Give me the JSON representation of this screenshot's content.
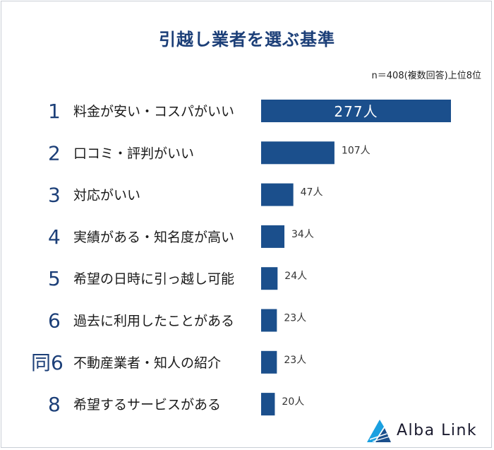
{
  "chart_data": {
    "type": "bar",
    "orientation": "horizontal",
    "title": "引越し業者を選ぶ基準",
    "note": "n＝408(複数回答)上位8位",
    "unit": "人",
    "ranks": [
      "1",
      "2",
      "3",
      "4",
      "5",
      "6",
      "同6",
      "8"
    ],
    "categories": [
      "料金が安い・コスパがいい",
      "口コミ・評判がいい",
      "対応がいい",
      "実績がある・知名度が高い",
      "希望の日時に引っ越し可能",
      "過去に利用したことがある",
      "不動産業者・知人の紹介",
      "希望するサービスがある"
    ],
    "values": [
      277,
      107,
      47,
      34,
      24,
      23,
      23,
      20
    ],
    "value_labels": [
      "277人",
      "107人",
      "47人",
      "34人",
      "24人",
      "23人",
      "23人",
      "20人"
    ],
    "bar_color": "#1b4f8c",
    "xlim": [
      0,
      277
    ]
  },
  "brand": {
    "name": "Alba Link",
    "colors": [
      "#1aa0e0",
      "#1b4f8c"
    ]
  }
}
